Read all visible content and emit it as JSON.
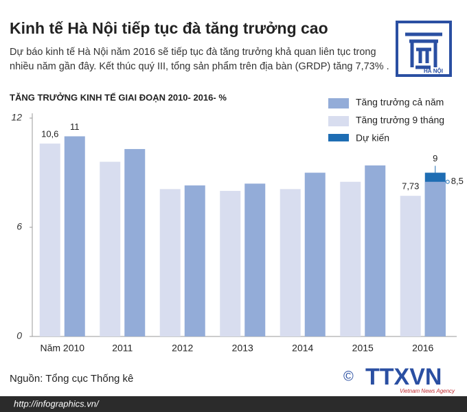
{
  "header": {
    "title": "Kinh tế Hà Nội tiếp tục đà tăng trưởng cao",
    "subtitle": "Dự báo kinh tế Hà Nội năm 2016 sẽ tiếp tục đà tăng trưởng khả quan liên tục trong nhiều năm gần đây. Kết thúc quý III, tổng sản phẩm trên địa bàn (GRDP) tăng 7,73% .",
    "logo_text": "HÀ NỘI"
  },
  "chart_data": {
    "type": "bar",
    "title": "TĂNG TRƯỞNG KINH TẾ GIAI ĐOẠN 2010- 2016- %",
    "categories": [
      "Năm 2010",
      "2011",
      "2012",
      "2013",
      "2014",
      "2015",
      "2016"
    ],
    "series": [
      {
        "name": "Tăng trưởng cả năm",
        "color": "#93acd8",
        "values": [
          11,
          10.3,
          8.3,
          8.4,
          9.0,
          9.4,
          8.5
        ],
        "value_labels": [
          "11",
          null,
          null,
          null,
          null,
          null,
          "8,5"
        ]
      },
      {
        "name": "Tăng trưởng 9 tháng",
        "color": "#d8ddef",
        "values": [
          10.6,
          9.6,
          8.1,
          8.0,
          8.1,
          8.5,
          7.73
        ],
        "value_labels": [
          "10,6",
          null,
          null,
          null,
          null,
          null,
          "7,73"
        ]
      },
      {
        "name": "Dự kiến",
        "color": "#1e6db3",
        "values": [
          null,
          null,
          null,
          null,
          null,
          null,
          9
        ],
        "value_labels": [
          null,
          null,
          null,
          null,
          null,
          null,
          "9"
        ]
      }
    ],
    "ylim": [
      0,
      12
    ],
    "yticks": [
      0,
      6,
      12
    ],
    "legend": "top-right"
  },
  "footer": {
    "source": "Nguồn: Tổng cục Thống kê",
    "url": "http://infographics.vn/",
    "copyright": "©",
    "agency": "TTXVN",
    "agency_sub": "Vietnam News Agency"
  }
}
